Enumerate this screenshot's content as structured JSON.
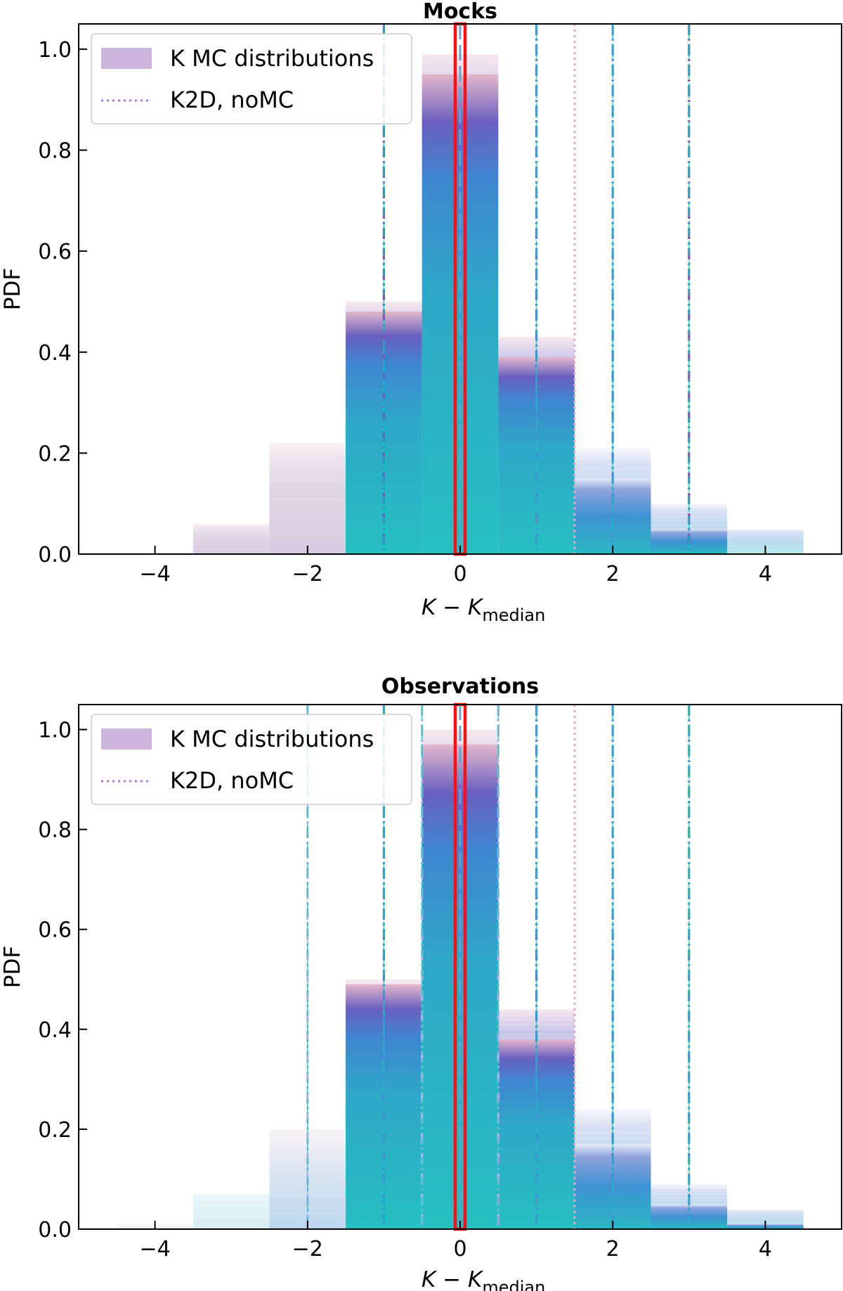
{
  "chart_data": [
    {
      "type": "bar",
      "title": "Mocks",
      "xlabel_main": "K − K",
      "xlabel_sub": "median",
      "ylabel": "PDF",
      "xlim": [
        -5,
        5
      ],
      "ylim": [
        0,
        1.05
      ],
      "xticks": [
        -4,
        -2,
        0,
        2,
        4
      ],
      "xtick_labels": [
        "−4",
        "−2",
        "0",
        "2",
        "4"
      ],
      "yticks": [
        0.0,
        0.2,
        0.4,
        0.6,
        0.8,
        1.0
      ],
      "ytick_labels": [
        "0.0",
        "0.2",
        "0.4",
        "0.6",
        "0.8",
        "1.0"
      ],
      "bin_width": 1,
      "bins": [
        {
          "center": -3,
          "max": 0.06,
          "min": 0.0
        },
        {
          "center": -2,
          "max": 0.22,
          "min": 0.0
        },
        {
          "center": -1,
          "max": 0.5,
          "min": 0.48
        },
        {
          "center": 0,
          "max": 0.99,
          "min": 0.95
        },
        {
          "center": 1,
          "max": 0.43,
          "min": 0.39
        },
        {
          "center": 2,
          "max": 0.21,
          "min": 0.15
        },
        {
          "center": 3,
          "max": 0.1,
          "min": 0.05
        },
        {
          "center": 4,
          "max": 0.05,
          "min": 0.0
        }
      ],
      "median_line": 0,
      "percentile_lines": [
        -1,
        1,
        2,
        3
      ],
      "nomc_line": 1.5,
      "legend": {
        "location": "upper-left",
        "entries": [
          "K MC distributions",
          "K2D, noMC"
        ]
      }
    },
    {
      "type": "bar",
      "title": "Observations",
      "xlabel_main": "K − K",
      "xlabel_sub": "median",
      "ylabel": "PDF",
      "xlim": [
        -5,
        5
      ],
      "ylim": [
        0,
        1.05
      ],
      "xticks": [
        -4,
        -2,
        0,
        2,
        4
      ],
      "xtick_labels": [
        "−4",
        "−2",
        "0",
        "2",
        "4"
      ],
      "yticks": [
        0.0,
        0.2,
        0.4,
        0.6,
        0.8,
        1.0
      ],
      "ytick_labels": [
        "0.0",
        "0.2",
        "0.4",
        "0.6",
        "0.8",
        "1.0"
      ],
      "bin_width": 1,
      "bins": [
        {
          "center": -4,
          "max": 0.01,
          "min": 0.0
        },
        {
          "center": -3,
          "max": 0.07,
          "min": 0.0
        },
        {
          "center": -2,
          "max": 0.2,
          "min": 0.0
        },
        {
          "center": -1,
          "max": 0.5,
          "min": 0.49
        },
        {
          "center": 0,
          "max": 1.0,
          "min": 0.97
        },
        {
          "center": 1,
          "max": 0.44,
          "min": 0.38
        },
        {
          "center": 2,
          "max": 0.24,
          "min": 0.17
        },
        {
          "center": 3,
          "max": 0.09,
          "min": 0.05
        },
        {
          "center": 4,
          "max": 0.04,
          "min": 0.01
        }
      ],
      "median_line": 0,
      "percentile_lines": [
        -2,
        -1,
        -0.5,
        0.5,
        1,
        2,
        3
      ],
      "nomc_line": 1.5,
      "legend": {
        "location": "upper-left",
        "entries": [
          "K MC distributions",
          "K2D, noMC"
        ]
      }
    }
  ],
  "colors": {
    "turquoise": "#26bfc2",
    "blue": "#3f8fd2",
    "purple": "#7a58b8",
    "mauve": "#9a6f9e",
    "pink": "#e8b4c8",
    "lavender": "#c9b4dd",
    "median": "#ff1010",
    "axis": "#000000"
  }
}
